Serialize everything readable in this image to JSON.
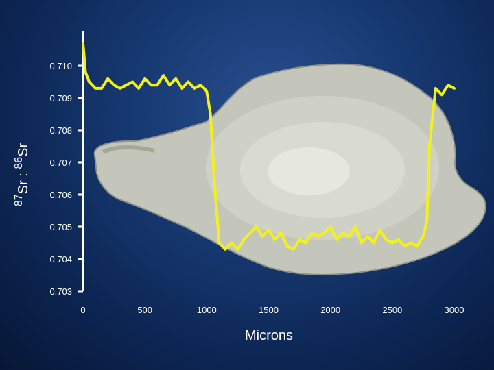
{
  "chart_data": {
    "type": "line",
    "xlabel": "Microns",
    "ylabel": {
      "mass1": "87",
      "el1": "Sr",
      "sep": " : ",
      "mass2": "86",
      "el2": "Sr"
    },
    "xlim": [
      0,
      3000
    ],
    "ylim": [
      0.703,
      0.7105
    ],
    "xticks": [
      "0",
      "500",
      "1000",
      "1500",
      "2000",
      "2500",
      "3000"
    ],
    "yticks": [
      "0.703",
      "0.704",
      "0.705",
      "0.706",
      "0.707",
      "0.708",
      "0.709",
      "0.710"
    ],
    "line_color": "#f2f21a",
    "background": "photo of otolith (fish ear stone) on blue background",
    "series": [
      {
        "x": [
          0,
          20,
          50,
          100,
          150,
          200,
          250,
          300,
          350,
          400,
          450,
          500,
          550,
          600,
          650,
          700,
          750,
          800,
          850,
          900,
          950,
          980,
          1000,
          1030,
          1060,
          1100,
          1150,
          1200,
          1250,
          1300,
          1350,
          1400,
          1450,
          1500,
          1550,
          1600,
          1650,
          1700,
          1750,
          1800,
          1850,
          1900,
          1950,
          2000,
          2050,
          2100,
          2150,
          2200,
          2250,
          2300,
          2350,
          2400,
          2450,
          2500,
          2550,
          2600,
          2650,
          2700,
          2730,
          2750,
          2780,
          2800,
          2850,
          2900,
          2950,
          3000
        ],
        "y": [
          0.7107,
          0.7098,
          0.7095,
          0.7093,
          0.7093,
          0.7096,
          0.7094,
          0.7093,
          0.7094,
          0.7095,
          0.7093,
          0.7096,
          0.7094,
          0.7094,
          0.7097,
          0.7094,
          0.7096,
          0.7093,
          0.7095,
          0.7093,
          0.7094,
          0.7093,
          0.7092,
          0.7085,
          0.7065,
          0.7045,
          0.7043,
          0.7045,
          0.7043,
          0.7046,
          0.7048,
          0.705,
          0.7047,
          0.7049,
          0.7046,
          0.7048,
          0.7044,
          0.7043,
          0.7046,
          0.7045,
          0.7048,
          0.7047,
          0.7048,
          0.705,
          0.7046,
          0.7048,
          0.7047,
          0.705,
          0.7045,
          0.7047,
          0.7045,
          0.7049,
          0.7046,
          0.7045,
          0.7046,
          0.7044,
          0.7045,
          0.7044,
          0.7046,
          0.7047,
          0.7052,
          0.7075,
          0.7093,
          0.7091,
          0.7094,
          0.7093
        ]
      }
    ]
  }
}
